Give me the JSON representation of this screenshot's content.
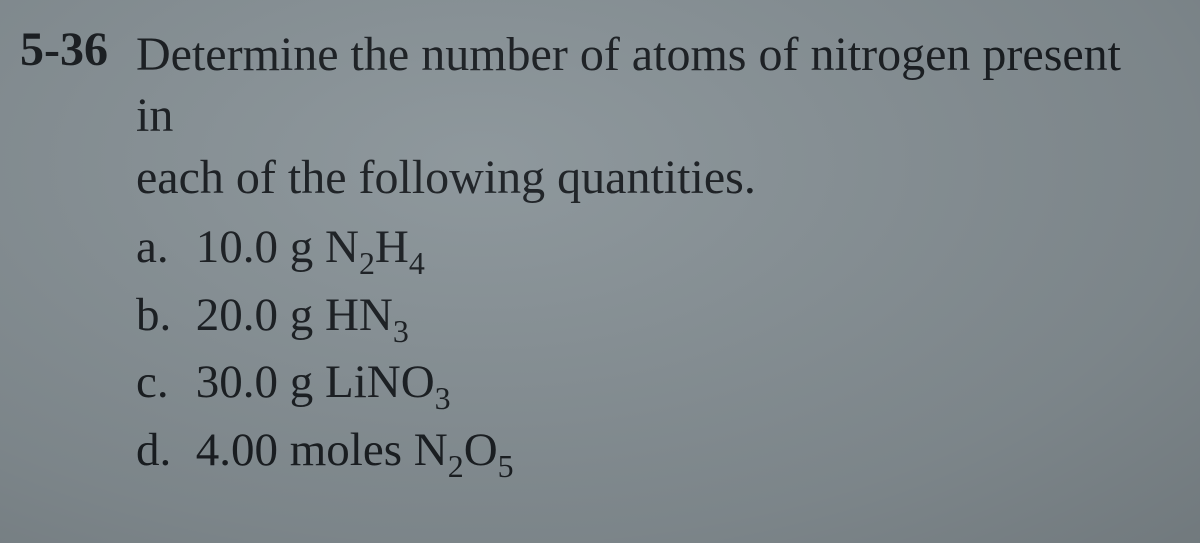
{
  "problem": {
    "number": "5-36",
    "text_line1": "Determine the number of atoms of nitrogen present in",
    "text_line2": "each of the following quantities.",
    "options": [
      {
        "label": "a.",
        "prefix": "10.0 g N",
        "sub1": "2",
        "mid": "H",
        "sub2": "4"
      },
      {
        "label": "b.",
        "prefix": "20.0 g HN",
        "sub1": "3",
        "mid": "",
        "sub2": ""
      },
      {
        "label": "c.",
        "prefix": "30.0 g LiNO",
        "sub1": "3",
        "mid": "",
        "sub2": ""
      },
      {
        "label": "d.",
        "prefix": "4.00 moles N",
        "sub1": "2",
        "mid": "O",
        "sub2": "5"
      }
    ]
  },
  "style": {
    "background_color": "#8a9499",
    "text_color": "#1a1e22",
    "problem_number_fontsize": 48,
    "body_fontsize": 48,
    "option_fontsize": 47,
    "font_family": "Georgia, 'Times New Roman', serif"
  }
}
